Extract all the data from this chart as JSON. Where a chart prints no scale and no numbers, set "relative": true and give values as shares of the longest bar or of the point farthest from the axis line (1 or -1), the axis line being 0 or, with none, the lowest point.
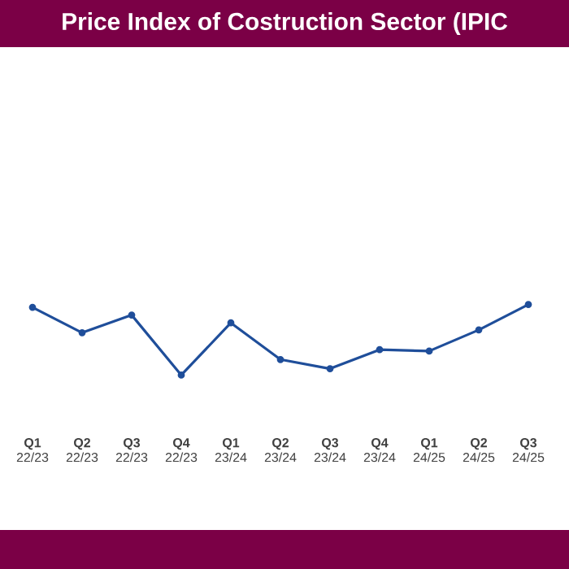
{
  "chart_data": {
    "type": "line",
    "title": "Price Index of Costruction Sector (IPIC",
    "categories": [
      "**Q1** 22/23",
      "**Q2** 22/23",
      "**Q3** 22/23",
      "**Q4** 22/23",
      "**Q1** 23/24",
      "**Q2** 23/24",
      "**Q3** 23/24",
      "**Q4** 23/24",
      "**Q1** 24/25",
      "**Q2** 24/25",
      "**Q3** 24/25"
    ],
    "relative": true,
    "series": [
      {
        "color": "#1f4e9a",
        "values": [
          0.96,
          0.6,
          0.85,
          0,
          0.74,
          0.22,
          0.09,
          0.36,
          0.34,
          0.64,
          1
        ]
      }
    ],
    "marker": "circle",
    "line_style": "solid"
  }
}
